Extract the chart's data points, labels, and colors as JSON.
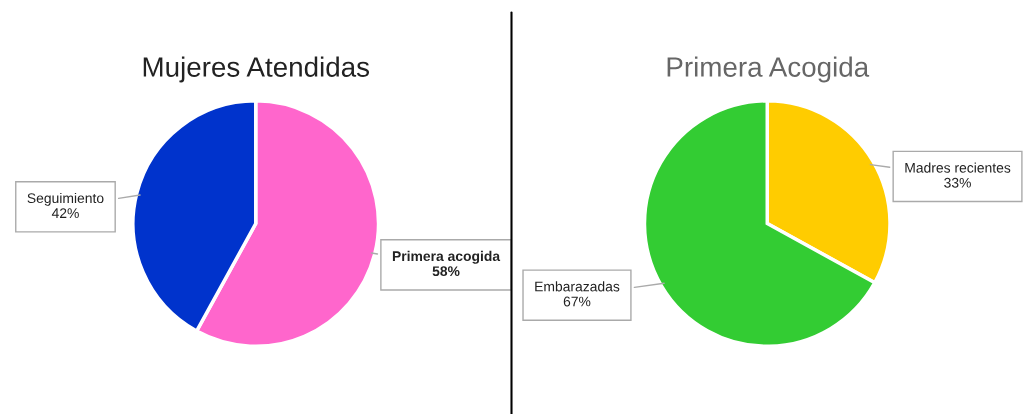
{
  "chart_data": [
    {
      "type": "pie",
      "title": "Mujeres Atendidas",
      "categories": [
        "Primera acogida",
        "Seguimiento"
      ],
      "values": [
        58,
        42
      ],
      "colors": [
        "#ff66cc",
        "#0033cc"
      ],
      "value_labels": [
        "58%",
        "42%"
      ],
      "legend": false
    },
    {
      "type": "pie",
      "title": "Primera Acogida",
      "categories": [
        "Madres recientes",
        "Embarazadas"
      ],
      "values": [
        33,
        67
      ],
      "colors": [
        "#ffcc00",
        "#33cc33"
      ],
      "value_labels": [
        "33%",
        "67%"
      ],
      "legend": false
    }
  ]
}
